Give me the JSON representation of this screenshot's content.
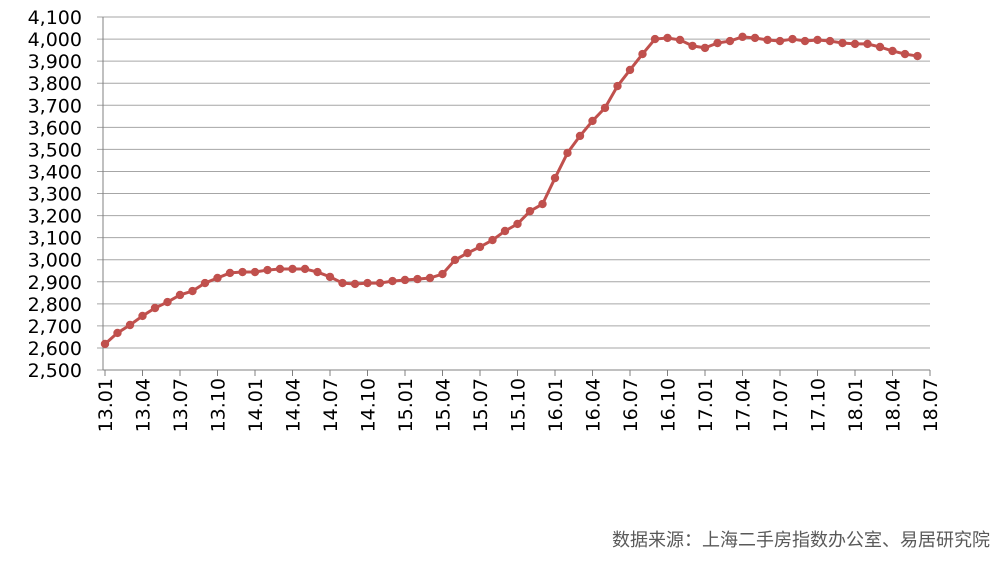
{
  "chart_data": {
    "type": "line",
    "categories": [
      "13.01",
      null,
      null,
      "13.04",
      null,
      null,
      "13.07",
      null,
      null,
      "13.10",
      null,
      null,
      "14.01",
      null,
      null,
      "14.04",
      null,
      null,
      "14.07",
      null,
      null,
      "14.10",
      null,
      null,
      "15.01",
      null,
      null,
      "15.04",
      null,
      null,
      "15.07",
      null,
      null,
      "15.10",
      null,
      null,
      "16.01",
      null,
      null,
      "16.04",
      null,
      null,
      "16.07",
      null,
      null,
      "16.10",
      null,
      null,
      "17.01",
      null,
      null,
      "17.04",
      null,
      null,
      "17.07",
      null,
      null,
      "17.10",
      null,
      null,
      "18.01",
      null,
      null,
      "18.04",
      null,
      null,
      "18.07"
    ],
    "series": [
      {
        "color": "#c0504d",
        "values": [
          2618,
          2668,
          2704,
          2745,
          2781,
          2808,
          2840,
          2858,
          2894,
          2917,
          2940,
          2944,
          2944,
          2953,
          2958,
          2958,
          2958,
          2944,
          2922,
          2894,
          2890,
          2894,
          2894,
          2903,
          2908,
          2912,
          2917,
          2935,
          2999,
          3030,
          3058,
          3089,
          3130,
          3162,
          3220,
          3252,
          3370,
          3484,
          3561,
          3629,
          3688,
          3787,
          3860,
          3932,
          4000,
          4005,
          3996,
          3969,
          3960,
          3982,
          3991,
          4010,
          4005,
          3996,
          3991,
          4000,
          3991,
          3996,
          3991,
          3982,
          3978,
          3978,
          3964,
          3946,
          3932,
          3923,
          null
        ]
      }
    ],
    "ylim": [
      2500,
      4100
    ],
    "yticks": [
      {
        "value": 2500,
        "label": "2,500"
      },
      {
        "value": 2600,
        "label": "2,600"
      },
      {
        "value": 2700,
        "label": "2,700"
      },
      {
        "value": 2800,
        "label": "2,800"
      },
      {
        "value": 2900,
        "label": "2,900"
      },
      {
        "value": 3000,
        "label": "3,000"
      },
      {
        "value": 3100,
        "label": "3,100"
      },
      {
        "value": 3200,
        "label": "3,200"
      },
      {
        "value": 3300,
        "label": "3,300"
      },
      {
        "value": 3400,
        "label": "3,400"
      },
      {
        "value": 3500,
        "label": "3,500"
      },
      {
        "value": 3600,
        "label": "3,600"
      },
      {
        "value": 3700,
        "label": "3,700"
      },
      {
        "value": 3800,
        "label": "3,800"
      },
      {
        "value": 3900,
        "label": "3,900"
      },
      {
        "value": 4000,
        "label": "4,000"
      },
      {
        "value": 4100,
        "label": "4,100"
      }
    ],
    "grid": true,
    "source": "数据来源：上海二手房指数办公室、易居研究院"
  }
}
